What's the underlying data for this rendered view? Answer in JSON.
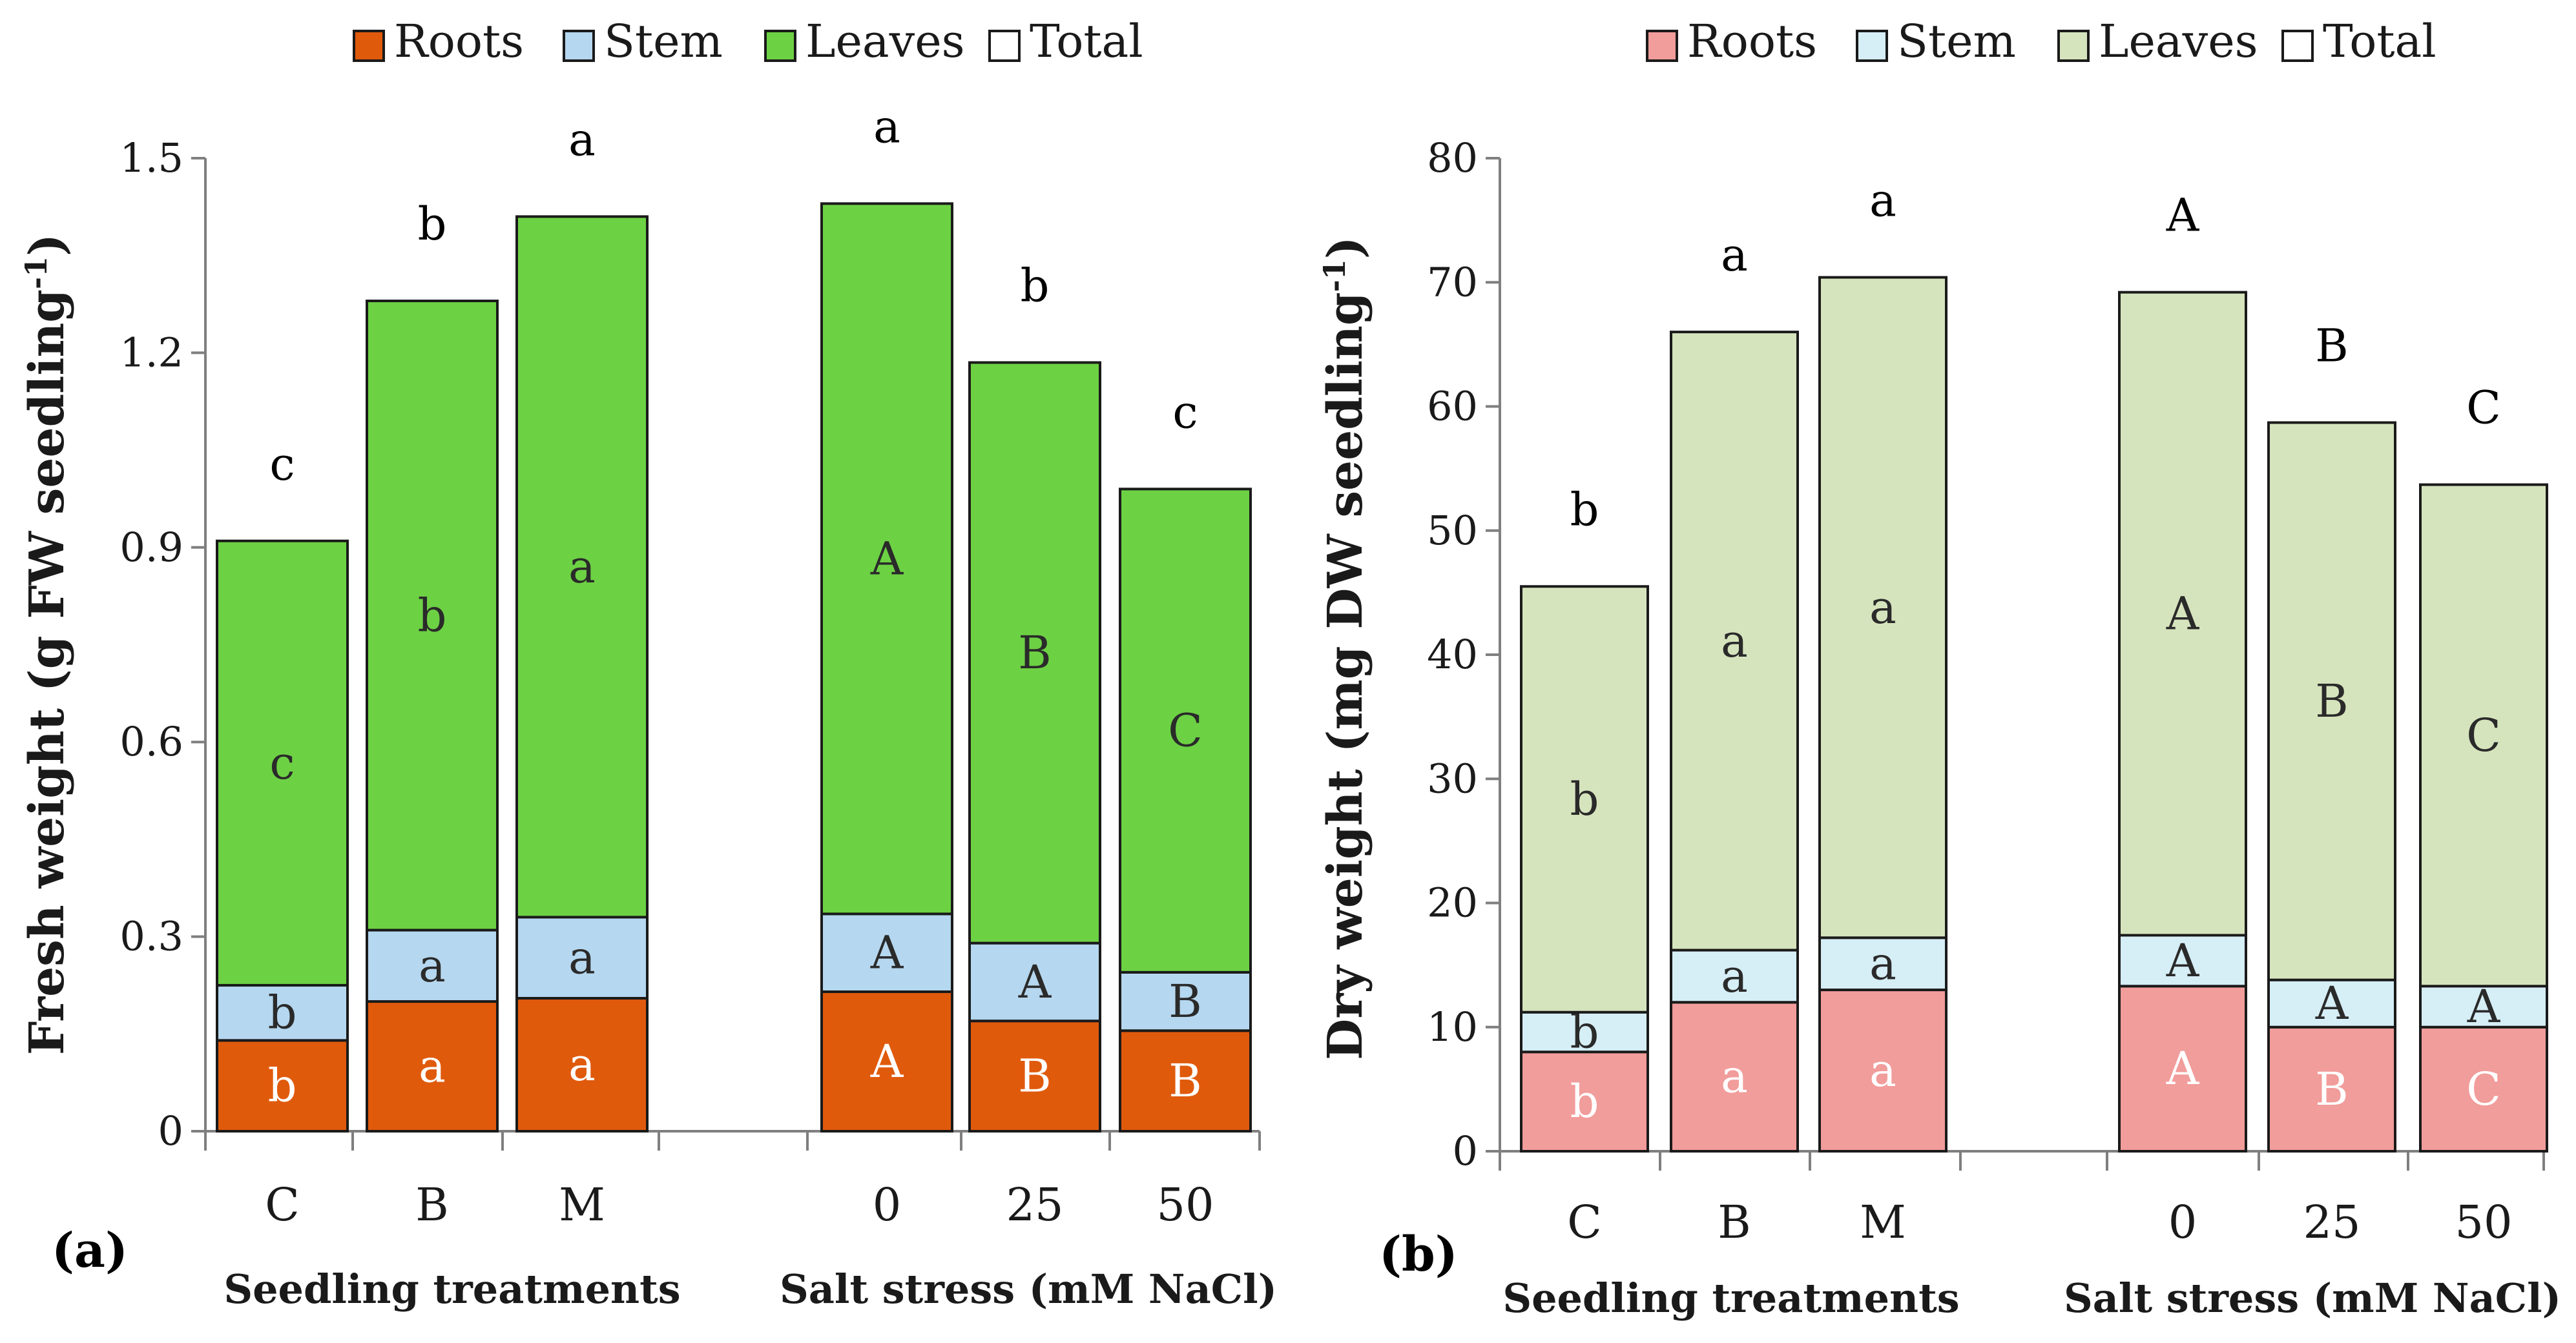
{
  "figure": {
    "panels": [
      {
        "id": "a",
        "panel_label": "(a)",
        "legend": [
          {
            "label": "Roots",
            "color": "#e05a0c"
          },
          {
            "label": "Stem",
            "color": "#b5d7ef"
          },
          {
            "label": "Leaves",
            "color": "#6dd144"
          },
          {
            "label": "Total",
            "color": "#ffffff"
          }
        ],
        "ylabel_main": "Fresh weight (g FW seedling",
        "ylabel_sup": "-1",
        "ylabel_close": ")",
        "ylim": [
          0,
          1.5
        ],
        "yticks": [
          "0",
          "0.3",
          "0.6",
          "0.9",
          "1.2",
          "1.5"
        ],
        "ytick_values": [
          0,
          0.3,
          0.6,
          0.9,
          1.2,
          1.5
        ],
        "groups": [
          {
            "label": "Seedling treatments",
            "categories": [
              "C",
              "B",
              "M"
            ]
          },
          {
            "label": "Salt stress (mM NaCl)",
            "categories": [
              "0",
              "25",
              "50"
            ]
          }
        ],
        "bars": [
          {
            "category": "C",
            "roots": 0.14,
            "stem": 0.085,
            "leaves": 0.685,
            "total": 0.91,
            "letters": {
              "roots": "b",
              "stem": "b",
              "leaves": "c",
              "total": "c"
            }
          },
          {
            "category": "B",
            "roots": 0.2,
            "stem": 0.11,
            "leaves": 0.97,
            "total": 1.28,
            "letters": {
              "roots": "a",
              "stem": "a",
              "leaves": "b",
              "total": "b"
            }
          },
          {
            "category": "M",
            "roots": 0.205,
            "stem": 0.125,
            "leaves": 1.08,
            "total": 1.41,
            "letters": {
              "roots": "a",
              "stem": "a",
              "leaves": "a",
              "total": "a"
            }
          },
          {
            "category": "0",
            "roots": 0.215,
            "stem": 0.12,
            "leaves": 1.095,
            "total": 1.43,
            "letters": {
              "roots": "A",
              "stem": "A",
              "leaves": "A",
              "total": "a"
            }
          },
          {
            "category": "25",
            "roots": 0.17,
            "stem": 0.12,
            "leaves": 0.895,
            "total": 1.185,
            "letters": {
              "roots": "B",
              "stem": "A",
              "leaves": "B",
              "total": "b"
            }
          },
          {
            "category": "50",
            "roots": 0.155,
            "stem": 0.09,
            "leaves": 0.745,
            "total": 0.99,
            "letters": {
              "roots": "B",
              "stem": "B",
              "leaves": "C",
              "total": "c"
            }
          }
        ]
      },
      {
        "id": "b",
        "panel_label": "(b)",
        "legend": [
          {
            "label": "Roots",
            "color": "#f19d9b"
          },
          {
            "label": "Stem",
            "color": "#d6eef6"
          },
          {
            "label": "Leaves",
            "color": "#d6e4bd"
          },
          {
            "label": "Total",
            "color": "#ffffff"
          }
        ],
        "ylabel_main": "Dry weight (mg DW seedling",
        "ylabel_sup": "-1",
        "ylabel_close": ")",
        "ylim": [
          0,
          80
        ],
        "yticks": [
          "0",
          "10",
          "20",
          "30",
          "40",
          "50",
          "60",
          "70",
          "80"
        ],
        "ytick_values": [
          0,
          10,
          20,
          30,
          40,
          50,
          60,
          70,
          80
        ],
        "groups": [
          {
            "label": "Seedling treatments",
            "categories": [
              "C",
              "B",
              "M"
            ]
          },
          {
            "label": "Salt stress (mM NaCl)",
            "categories": [
              "0",
              "25",
              "50"
            ]
          }
        ],
        "bars": [
          {
            "category": "C",
            "roots": 8.0,
            "stem": 3.2,
            "leaves": 34.3,
            "total": 45.5,
            "letters": {
              "roots": "b",
              "stem": "b",
              "leaves": "b",
              "total": "b"
            }
          },
          {
            "category": "B",
            "roots": 12.0,
            "stem": 4.2,
            "leaves": 49.8,
            "total": 66.0,
            "letters": {
              "roots": "a",
              "stem": "a",
              "leaves": "a",
              "total": "a"
            }
          },
          {
            "category": "M",
            "roots": 13.0,
            "stem": 4.2,
            "leaves": 53.2,
            "total": 70.4,
            "letters": {
              "roots": "a",
              "stem": "a",
              "leaves": "a",
              "total": "a"
            }
          },
          {
            "category": "0",
            "roots": 13.3,
            "stem": 4.1,
            "leaves": 51.8,
            "total": 69.2,
            "letters": {
              "roots": "A",
              "stem": "A",
              "leaves": "A",
              "total": "A"
            }
          },
          {
            "category": "25",
            "roots": 10.0,
            "stem": 3.8,
            "leaves": 44.9,
            "total": 58.7,
            "letters": {
              "roots": "B",
              "stem": "A",
              "leaves": "B",
              "total": "B"
            }
          },
          {
            "category": "50",
            "roots": 10.0,
            "stem": 3.3,
            "leaves": 40.4,
            "total": 53.7,
            "letters": {
              "roots": "C",
              "stem": "A",
              "leaves": "C",
              "total": "C"
            }
          }
        ]
      }
    ]
  },
  "chart_data": [
    {
      "type": "bar",
      "stacked": true,
      "title": "",
      "xlabel": "Seedling treatments | Salt stress (mM NaCl)",
      "ylabel": "Fresh weight (g FW seedling-1)",
      "ylim": [
        0,
        1.5
      ],
      "categories": [
        "C",
        "B",
        "M",
        "0",
        "25",
        "50"
      ],
      "series": [
        {
          "name": "Roots",
          "values": [
            0.14,
            0.2,
            0.205,
            0.215,
            0.17,
            0.155
          ]
        },
        {
          "name": "Stem",
          "values": [
            0.085,
            0.11,
            0.125,
            0.12,
            0.12,
            0.09
          ]
        },
        {
          "name": "Leaves",
          "values": [
            0.685,
            0.97,
            1.08,
            1.095,
            0.895,
            0.745
          ]
        },
        {
          "name": "Total",
          "values": [
            0.91,
            1.28,
            1.41,
            1.43,
            1.185,
            0.99
          ]
        }
      ],
      "legend": "top-center",
      "grid": false
    },
    {
      "type": "bar",
      "stacked": true,
      "title": "",
      "xlabel": "Seedling treatments | Salt stress (mM NaCl)",
      "ylabel": "Dry weight (mg DW seedling-1)",
      "ylim": [
        0,
        80
      ],
      "categories": [
        "C",
        "B",
        "M",
        "0",
        "25",
        "50"
      ],
      "series": [
        {
          "name": "Roots",
          "values": [
            8.0,
            12.0,
            13.0,
            13.3,
            10.0,
            10.0
          ]
        },
        {
          "name": "Stem",
          "values": [
            3.2,
            4.2,
            4.2,
            4.1,
            3.8,
            3.3
          ]
        },
        {
          "name": "Leaves",
          "values": [
            34.3,
            49.8,
            53.2,
            51.8,
            44.9,
            40.4
          ]
        },
        {
          "name": "Total",
          "values": [
            45.5,
            66.0,
            70.4,
            69.2,
            58.7,
            53.7
          ]
        }
      ],
      "legend": "top-center",
      "grid": false
    }
  ]
}
